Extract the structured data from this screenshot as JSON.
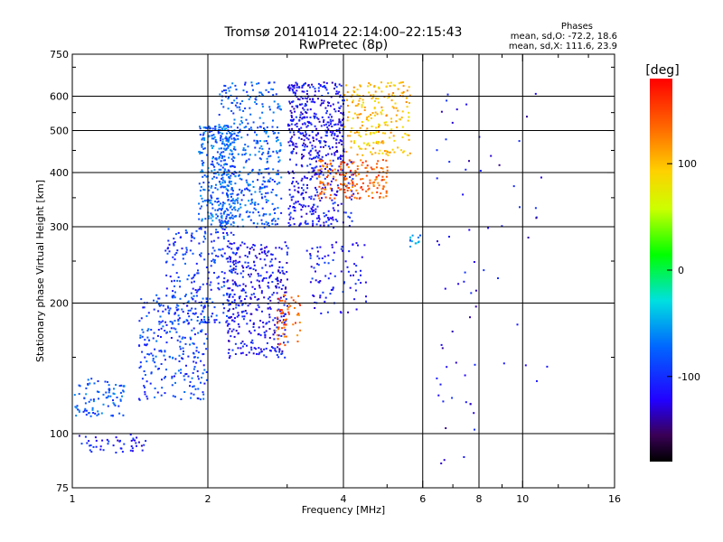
{
  "chart_data": {
    "type": "scatter",
    "title": "Tromsø 20141014 22:14:00–22:15:43",
    "subtitle": "RwPretec (8p)",
    "stats": {
      "heading": "Phases",
      "line_o": "mean, sd,O: -72.2, 18.6",
      "line_x": "mean, sd,X: 111.6, 23.9"
    },
    "xlabel": "Frequency [MHz]",
    "ylabel": "Stationary phase Virtual Height [km]",
    "x_scale": "log",
    "y_scale": "log",
    "xlim": [
      1,
      16
    ],
    "ylim": [
      75,
      750
    ],
    "x_ticks": [
      1,
      2,
      4,
      6,
      8,
      10,
      16
    ],
    "x_tick_labels": [
      "1",
      "2",
      "4",
      "6",
      "8",
      "10",
      "16"
    ],
    "x_grid": [
      2,
      4,
      6,
      8,
      10
    ],
    "y_ticks": [
      75,
      100,
      200,
      300,
      400,
      500,
      600,
      750
    ],
    "y_tick_labels": [
      "75",
      "100",
      "200",
      "300",
      "400",
      "500",
      "600",
      "750"
    ],
    "y_grid": [
      100,
      200,
      300,
      400,
      500,
      600
    ],
    "grid": true,
    "colorbar": {
      "label": "[deg]",
      "range": [
        -180,
        180
      ],
      "ticks": [
        100,
        0,
        -100
      ],
      "tick_labels": [
        "100",
        "0",
        "-100"
      ]
    },
    "clusters": [
      {
        "fmin": 1.0,
        "fmax": 1.45,
        "hmin": 90,
        "hmax": 100,
        "phase": -110,
        "count": 50
      },
      {
        "fmin": 1.0,
        "fmax": 1.3,
        "hmin": 110,
        "hmax": 135,
        "phase": -80,
        "count": 90
      },
      {
        "fmin": 1.4,
        "fmax": 2.0,
        "hmin": 120,
        "hmax": 210,
        "phase": -90,
        "count": 260
      },
      {
        "fmin": 1.6,
        "fmax": 2.3,
        "hmin": 180,
        "hmax": 300,
        "phase": -95,
        "count": 240
      },
      {
        "fmin": 1.9,
        "fmax": 2.3,
        "hmin": 300,
        "hmax": 520,
        "phase": -75,
        "count": 320
      },
      {
        "fmin": 2.1,
        "fmax": 2.9,
        "hmin": 300,
        "hmax": 650,
        "phase": -80,
        "count": 420
      },
      {
        "fmin": 2.2,
        "fmax": 3.0,
        "hmin": 150,
        "hmax": 280,
        "phase": -115,
        "count": 380
      },
      {
        "fmin": 3.0,
        "fmax": 4.0,
        "hmin": 430,
        "hmax": 650,
        "phase": -115,
        "count": 380
      },
      {
        "fmin": 3.0,
        "fmax": 4.2,
        "hmin": 300,
        "hmax": 430,
        "phase": -112,
        "count": 220
      },
      {
        "fmin": 3.3,
        "fmax": 4.5,
        "hmin": 190,
        "hmax": 280,
        "phase": -110,
        "count": 90
      },
      {
        "fmin": 4.0,
        "fmax": 5.6,
        "hmin": 440,
        "hmax": 650,
        "phase": 100,
        "count": 220
      },
      {
        "fmin": 3.5,
        "fmax": 5.0,
        "hmin": 350,
        "hmax": 430,
        "phase": 140,
        "count": 180
      },
      {
        "fmin": 2.8,
        "fmax": 3.2,
        "hmin": 160,
        "hmax": 210,
        "phase": 140,
        "count": 60
      },
      {
        "fmin": 5.6,
        "fmax": 5.9,
        "hmin": 270,
        "hmax": 290,
        "phase": -60,
        "count": 12
      },
      {
        "fmin": 6.4,
        "fmax": 7.8,
        "hmin": 80,
        "hmax": 650,
        "phase": -120,
        "count": 45
      },
      {
        "fmin": 7.8,
        "fmax": 11.5,
        "hmin": 130,
        "hmax": 620,
        "phase": -120,
        "count": 25
      }
    ]
  }
}
